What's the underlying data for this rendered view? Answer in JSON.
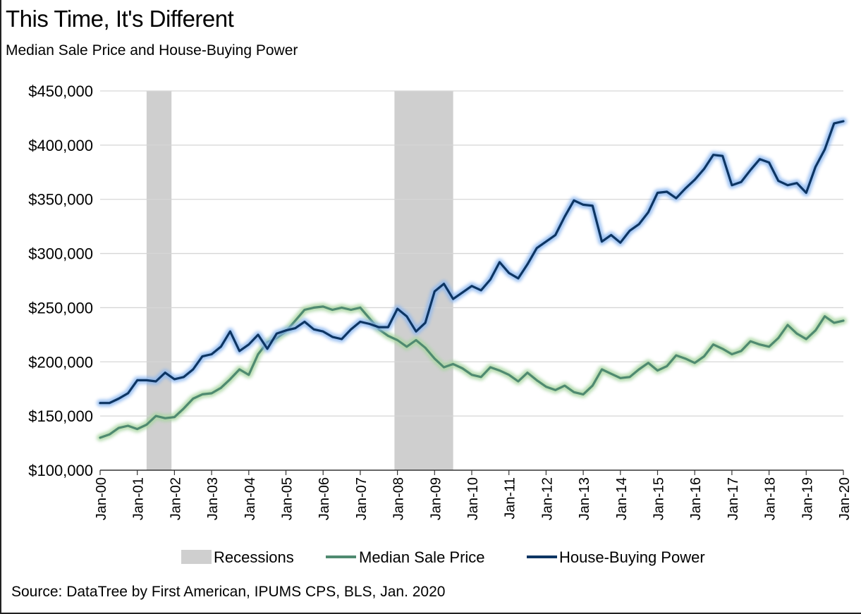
{
  "title": "This Time, It's Different",
  "subtitle": "Median Sale Price and House-Buying Power",
  "source": "Source: DataTree by First American, IPUMS CPS, BLS, Jan. 2020",
  "colors": {
    "recessions": "#cfcfcf",
    "median_sale_price": "#4f8a70",
    "median_sale_price_glow": "#a9d6a1",
    "house_buying_power": "#0d3563",
    "house_buying_power_glow": "#8ab6ef",
    "grid": "#d6d6d6"
  },
  "chart_data": {
    "type": "line",
    "title": "This Time, It's Different",
    "subtitle": "Median Sale Price and House-Buying Power",
    "xlabel": "",
    "ylabel": "",
    "x_range": [
      "Jan-00",
      "Jan-20"
    ],
    "ylim": [
      100000,
      450000
    ],
    "y_ticks": [
      100000,
      150000,
      200000,
      250000,
      300000,
      350000,
      400000,
      450000
    ],
    "y_tick_labels": [
      "$100,000",
      "$150,000",
      "$200,000",
      "$250,000",
      "$300,000",
      "$350,000",
      "$400,000",
      "$450,000"
    ],
    "x_ticks": [
      2000,
      2001,
      2002,
      2003,
      2004,
      2005,
      2006,
      2007,
      2008,
      2009,
      2010,
      2011,
      2012,
      2013,
      2014,
      2015,
      2016,
      2017,
      2018,
      2019,
      2020
    ],
    "x_tick_labels": [
      "Jan-00",
      "Jan-01",
      "Jan-02",
      "Jan-03",
      "Jan-04",
      "Jan-05",
      "Jan-06",
      "Jan-07",
      "Jan-08",
      "Jan-09",
      "Jan-10",
      "Jan-11",
      "Jan-12",
      "Jan-13",
      "Jan-14",
      "Jan-15",
      "Jan-16",
      "Jan-17",
      "Jan-18",
      "Jan-19",
      "Jan-20"
    ],
    "grid": "horizontal",
    "legend_position": "bottom",
    "recessions": {
      "name": "Recessions",
      "periods": [
        [
          2001.25,
          2001.92
        ],
        [
          2007.92,
          2009.5
        ]
      ]
    },
    "series": [
      {
        "name": "Median Sale Price",
        "points": [
          [
            2000.0,
            130000
          ],
          [
            2000.25,
            133000
          ],
          [
            2000.5,
            139000
          ],
          [
            2000.75,
            141000
          ],
          [
            2001.0,
            138000
          ],
          [
            2001.25,
            142000
          ],
          [
            2001.5,
            150000
          ],
          [
            2001.75,
            148000
          ],
          [
            2002.0,
            149000
          ],
          [
            2002.25,
            157000
          ],
          [
            2002.5,
            166000
          ],
          [
            2002.75,
            170000
          ],
          [
            2003.0,
            171000
          ],
          [
            2003.25,
            176000
          ],
          [
            2003.5,
            184000
          ],
          [
            2003.75,
            193000
          ],
          [
            2004.0,
            188000
          ],
          [
            2004.25,
            207000
          ],
          [
            2004.5,
            218000
          ],
          [
            2004.75,
            222000
          ],
          [
            2005.0,
            228000
          ],
          [
            2005.25,
            238000
          ],
          [
            2005.5,
            248000
          ],
          [
            2005.75,
            250000
          ],
          [
            2006.0,
            251000
          ],
          [
            2006.25,
            248000
          ],
          [
            2006.5,
            250000
          ],
          [
            2006.75,
            248000
          ],
          [
            2007.0,
            250000
          ],
          [
            2007.25,
            240000
          ],
          [
            2007.5,
            230000
          ],
          [
            2007.75,
            224000
          ],
          [
            2008.0,
            220000
          ],
          [
            2008.25,
            214000
          ],
          [
            2008.5,
            220000
          ],
          [
            2008.75,
            213000
          ],
          [
            2009.0,
            203000
          ],
          [
            2009.25,
            195000
          ],
          [
            2009.5,
            198000
          ],
          [
            2009.75,
            194000
          ],
          [
            2010.0,
            188000
          ],
          [
            2010.25,
            186000
          ],
          [
            2010.5,
            195000
          ],
          [
            2010.75,
            192000
          ],
          [
            2011.0,
            188000
          ],
          [
            2011.25,
            182000
          ],
          [
            2011.5,
            190000
          ],
          [
            2011.75,
            183000
          ],
          [
            2012.0,
            177000
          ],
          [
            2012.25,
            174000
          ],
          [
            2012.5,
            178000
          ],
          [
            2012.75,
            172000
          ],
          [
            2013.0,
            170000
          ],
          [
            2013.25,
            178000
          ],
          [
            2013.5,
            193000
          ],
          [
            2013.75,
            189000
          ],
          [
            2014.0,
            185000
          ],
          [
            2014.25,
            186000
          ],
          [
            2014.5,
            193000
          ],
          [
            2014.75,
            199000
          ],
          [
            2015.0,
            192000
          ],
          [
            2015.25,
            196000
          ],
          [
            2015.5,
            206000
          ],
          [
            2015.75,
            203000
          ],
          [
            2016.0,
            199000
          ],
          [
            2016.25,
            205000
          ],
          [
            2016.5,
            216000
          ],
          [
            2016.75,
            212000
          ],
          [
            2017.0,
            207000
          ],
          [
            2017.25,
            210000
          ],
          [
            2017.5,
            219000
          ],
          [
            2017.75,
            216000
          ],
          [
            2018.0,
            214000
          ],
          [
            2018.25,
            222000
          ],
          [
            2018.5,
            234000
          ],
          [
            2018.75,
            226000
          ],
          [
            2019.0,
            221000
          ],
          [
            2019.25,
            229000
          ],
          [
            2019.5,
            242000
          ],
          [
            2019.75,
            236000
          ],
          [
            2020.0,
            238000
          ]
        ]
      },
      {
        "name": "House-Buying Power",
        "points": [
          [
            2000.0,
            162000
          ],
          [
            2000.25,
            162000
          ],
          [
            2000.5,
            166000
          ],
          [
            2000.75,
            171000
          ],
          [
            2001.0,
            183000
          ],
          [
            2001.25,
            183000
          ],
          [
            2001.5,
            182000
          ],
          [
            2001.75,
            190000
          ],
          [
            2002.0,
            184000
          ],
          [
            2002.25,
            186000
          ],
          [
            2002.5,
            193000
          ],
          [
            2002.75,
            205000
          ],
          [
            2003.0,
            207000
          ],
          [
            2003.25,
            214000
          ],
          [
            2003.5,
            228000
          ],
          [
            2003.75,
            210000
          ],
          [
            2004.0,
            216000
          ],
          [
            2004.25,
            225000
          ],
          [
            2004.5,
            212000
          ],
          [
            2004.75,
            226000
          ],
          [
            2005.0,
            229000
          ],
          [
            2005.25,
            231000
          ],
          [
            2005.5,
            237000
          ],
          [
            2005.75,
            230000
          ],
          [
            2006.0,
            228000
          ],
          [
            2006.25,
            223000
          ],
          [
            2006.5,
            221000
          ],
          [
            2006.75,
            230000
          ],
          [
            2007.0,
            237000
          ],
          [
            2007.25,
            235000
          ],
          [
            2007.5,
            232000
          ],
          [
            2007.75,
            232000
          ],
          [
            2008.0,
            249000
          ],
          [
            2008.25,
            242000
          ],
          [
            2008.5,
            228000
          ],
          [
            2008.75,
            236000
          ],
          [
            2009.0,
            265000
          ],
          [
            2009.25,
            272000
          ],
          [
            2009.5,
            258000
          ],
          [
            2009.75,
            264000
          ],
          [
            2010.0,
            270000
          ],
          [
            2010.25,
            266000
          ],
          [
            2010.5,
            276000
          ],
          [
            2010.75,
            292000
          ],
          [
            2011.0,
            282000
          ],
          [
            2011.25,
            277000
          ],
          [
            2011.5,
            290000
          ],
          [
            2011.75,
            305000
          ],
          [
            2012.0,
            311000
          ],
          [
            2012.25,
            317000
          ],
          [
            2012.5,
            334000
          ],
          [
            2012.75,
            349000
          ],
          [
            2013.0,
            345000
          ],
          [
            2013.25,
            344000
          ],
          [
            2013.5,
            311000
          ],
          [
            2013.75,
            317000
          ],
          [
            2014.0,
            310000
          ],
          [
            2014.25,
            321000
          ],
          [
            2014.5,
            327000
          ],
          [
            2014.75,
            338000
          ],
          [
            2015.0,
            356000
          ],
          [
            2015.25,
            357000
          ],
          [
            2015.5,
            351000
          ],
          [
            2015.75,
            360000
          ],
          [
            2016.0,
            368000
          ],
          [
            2016.25,
            378000
          ],
          [
            2016.5,
            391000
          ],
          [
            2016.75,
            390000
          ],
          [
            2017.0,
            363000
          ],
          [
            2017.25,
            366000
          ],
          [
            2017.5,
            377000
          ],
          [
            2017.75,
            387000
          ],
          [
            2018.0,
            384000
          ],
          [
            2018.25,
            367000
          ],
          [
            2018.5,
            363000
          ],
          [
            2018.75,
            365000
          ],
          [
            2019.0,
            356000
          ],
          [
            2019.25,
            380000
          ],
          [
            2019.5,
            396000
          ],
          [
            2019.75,
            420000
          ],
          [
            2020.0,
            422000
          ]
        ]
      }
    ]
  }
}
